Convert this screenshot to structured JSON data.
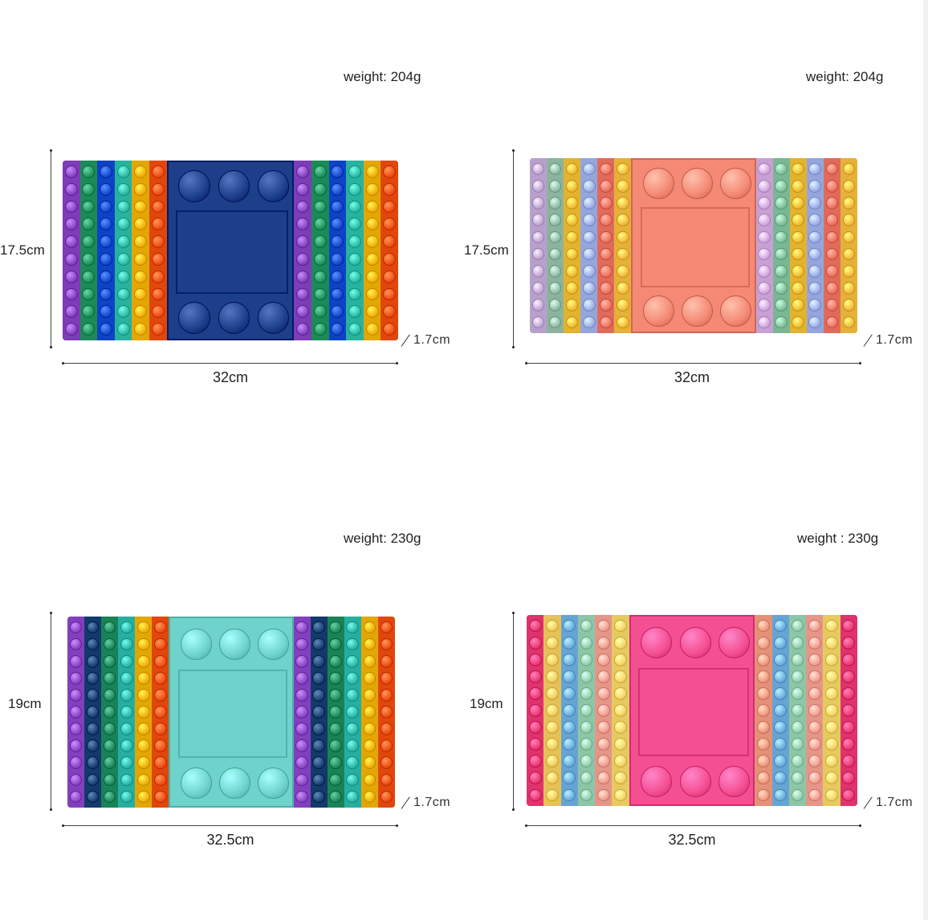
{
  "panels": [
    {
      "weight": "weight: 204g",
      "height_label": "17.5cm",
      "width_label": "32cm",
      "depth_label": "1.7cm",
      "left_colors": [
        "#8e4fc9",
        "#2e9c6a",
        "#1f55d6",
        "#3bc4b0",
        "#f5b916",
        "#f2591c"
      ],
      "right_colors": [
        "#8e4fc9",
        "#2e9c6a",
        "#1f55d6",
        "#3bc4b0",
        "#f5b916",
        "#f2591c"
      ],
      "center_color": "#1d3f8a",
      "rows": 10
    },
    {
      "weight": "weight: 204g",
      "height_label": "17.5cm",
      "width_label": "32cm",
      "depth_label": "1.7cm",
      "left_colors": [
        "#c9b3de",
        "#9ec5b0",
        "#f5c542",
        "#a7b8ef",
        "#f37d6c",
        "#f7c34a"
      ],
      "right_colors": [
        "#d9b3e6",
        "#8cc9a7",
        "#f5c542",
        "#a7b8ef",
        "#f37d6c",
        "#f7c34a"
      ],
      "center_color": "#f48a76",
      "rows": 10
    },
    {
      "weight": "weight: 230g",
      "height_label": "19cm",
      "width_label": "32.5cm",
      "depth_label": "1.7cm",
      "left_colors": [
        "#9352cf",
        "#244c7d",
        "#2b9468",
        "#39c0b3",
        "#f5b916",
        "#f2591c"
      ],
      "right_colors": [
        "#9352cf",
        "#244c7d",
        "#2b9468",
        "#39c0b3",
        "#f5b916",
        "#f2591c"
      ],
      "center_color": "#6fd3cb",
      "rows": 11
    },
    {
      "weight": "weight :  230g",
      "height_label": "19cm",
      "width_label": "32.5cm",
      "depth_label": "1.7cm",
      "left_colors": [
        "#f0457e",
        "#f6d46a",
        "#78b6e6",
        "#9fd8b8",
        "#f7a89a",
        "#f8dc71"
      ],
      "right_colors": [
        "#f6a38a",
        "#78b6e6",
        "#9fd8b8",
        "#f7a89a",
        "#f8dc71",
        "#f0457e"
      ],
      "center_color": "#f54f93",
      "rows": 11
    }
  ]
}
